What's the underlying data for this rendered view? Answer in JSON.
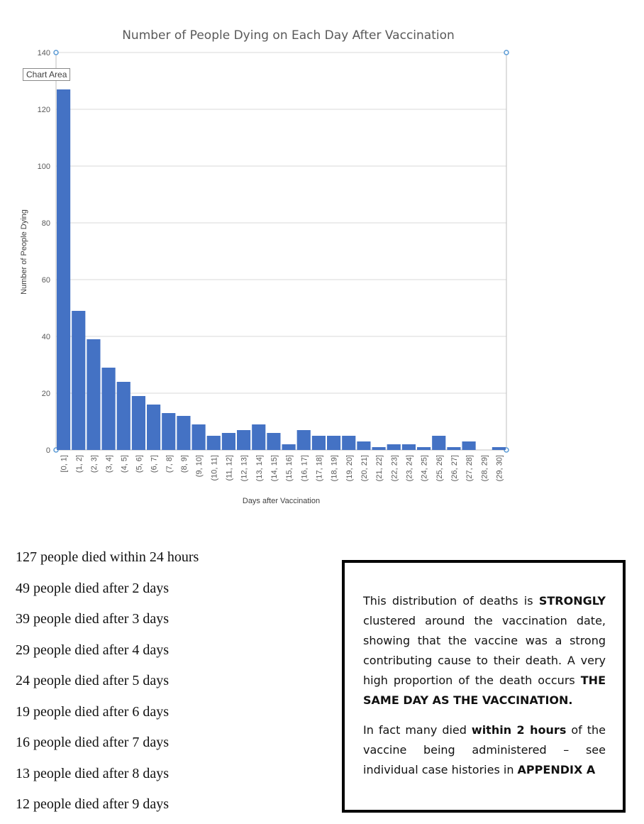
{
  "chart_data": {
    "type": "bar",
    "title": "Number of People Dying on Each Day After Vaccination",
    "xlabel": "Days after Vaccination",
    "ylabel": "Number of People Dying",
    "ylim": [
      0,
      140
    ],
    "yticks": [
      0,
      20,
      40,
      60,
      80,
      100,
      120,
      140
    ],
    "grid": true,
    "bar_color": "#4472C4",
    "categories": [
      "[0, 1]",
      "(1, 2]",
      "(2, 3]",
      "(3, 4]",
      "(4, 5]",
      "(5, 6]",
      "(6, 7]",
      "(7, 8]",
      "(8, 9]",
      "(9, 10]",
      "(10, 11]",
      "(11, 12]",
      "(12, 13]",
      "(13, 14]",
      "(14, 15]",
      "(15, 16]",
      "(16, 17]",
      "(17, 18]",
      "(18, 19]",
      "(19, 20]",
      "(20, 21]",
      "(21, 22]",
      "(22, 23]",
      "(23, 24]",
      "(24, 25]",
      "(25, 26]",
      "(26, 27]",
      "(27, 28]",
      "(28, 29]",
      "(29, 30]"
    ],
    "values": [
      127,
      49,
      39,
      29,
      24,
      19,
      16,
      13,
      12,
      9,
      5,
      6,
      7,
      9,
      6,
      2,
      7,
      5,
      5,
      5,
      3,
      1,
      2,
      2,
      1,
      5,
      1,
      3,
      0,
      1
    ]
  },
  "chart_area_tag": "Chart Area",
  "deaths_list": [
    "127 people died within 24 hours",
    "49 people died after 2 days",
    "39 people died after 3 days",
    "29 people died after 4 days",
    "24 people died after 5 days",
    "19 people died after 6 days",
    "16 people died after 7 days",
    "13 people died after 8 days",
    "12 people died after 9 days"
  ],
  "note": {
    "p1": [
      {
        "text": "This distribution of deaths is ",
        "bold": false
      },
      {
        "text": "STRONGLY",
        "bold": true
      },
      {
        "text": " clustered around the vaccination date, showing that the vaccine was a strong contributing cause to their death. A very high proportion of the death occurs ",
        "bold": false
      },
      {
        "text": "THE SAME DAY AS THE VACCINATION.",
        "bold": true
      }
    ],
    "p2": [
      {
        "text": "In fact many died ",
        "bold": false
      },
      {
        "text": "within 2 hours",
        "bold": true
      },
      {
        "text": " of the vaccine being administered – see individual case histories in ",
        "bold": false
      },
      {
        "text": "APPENDIX A",
        "bold": true
      }
    ]
  }
}
